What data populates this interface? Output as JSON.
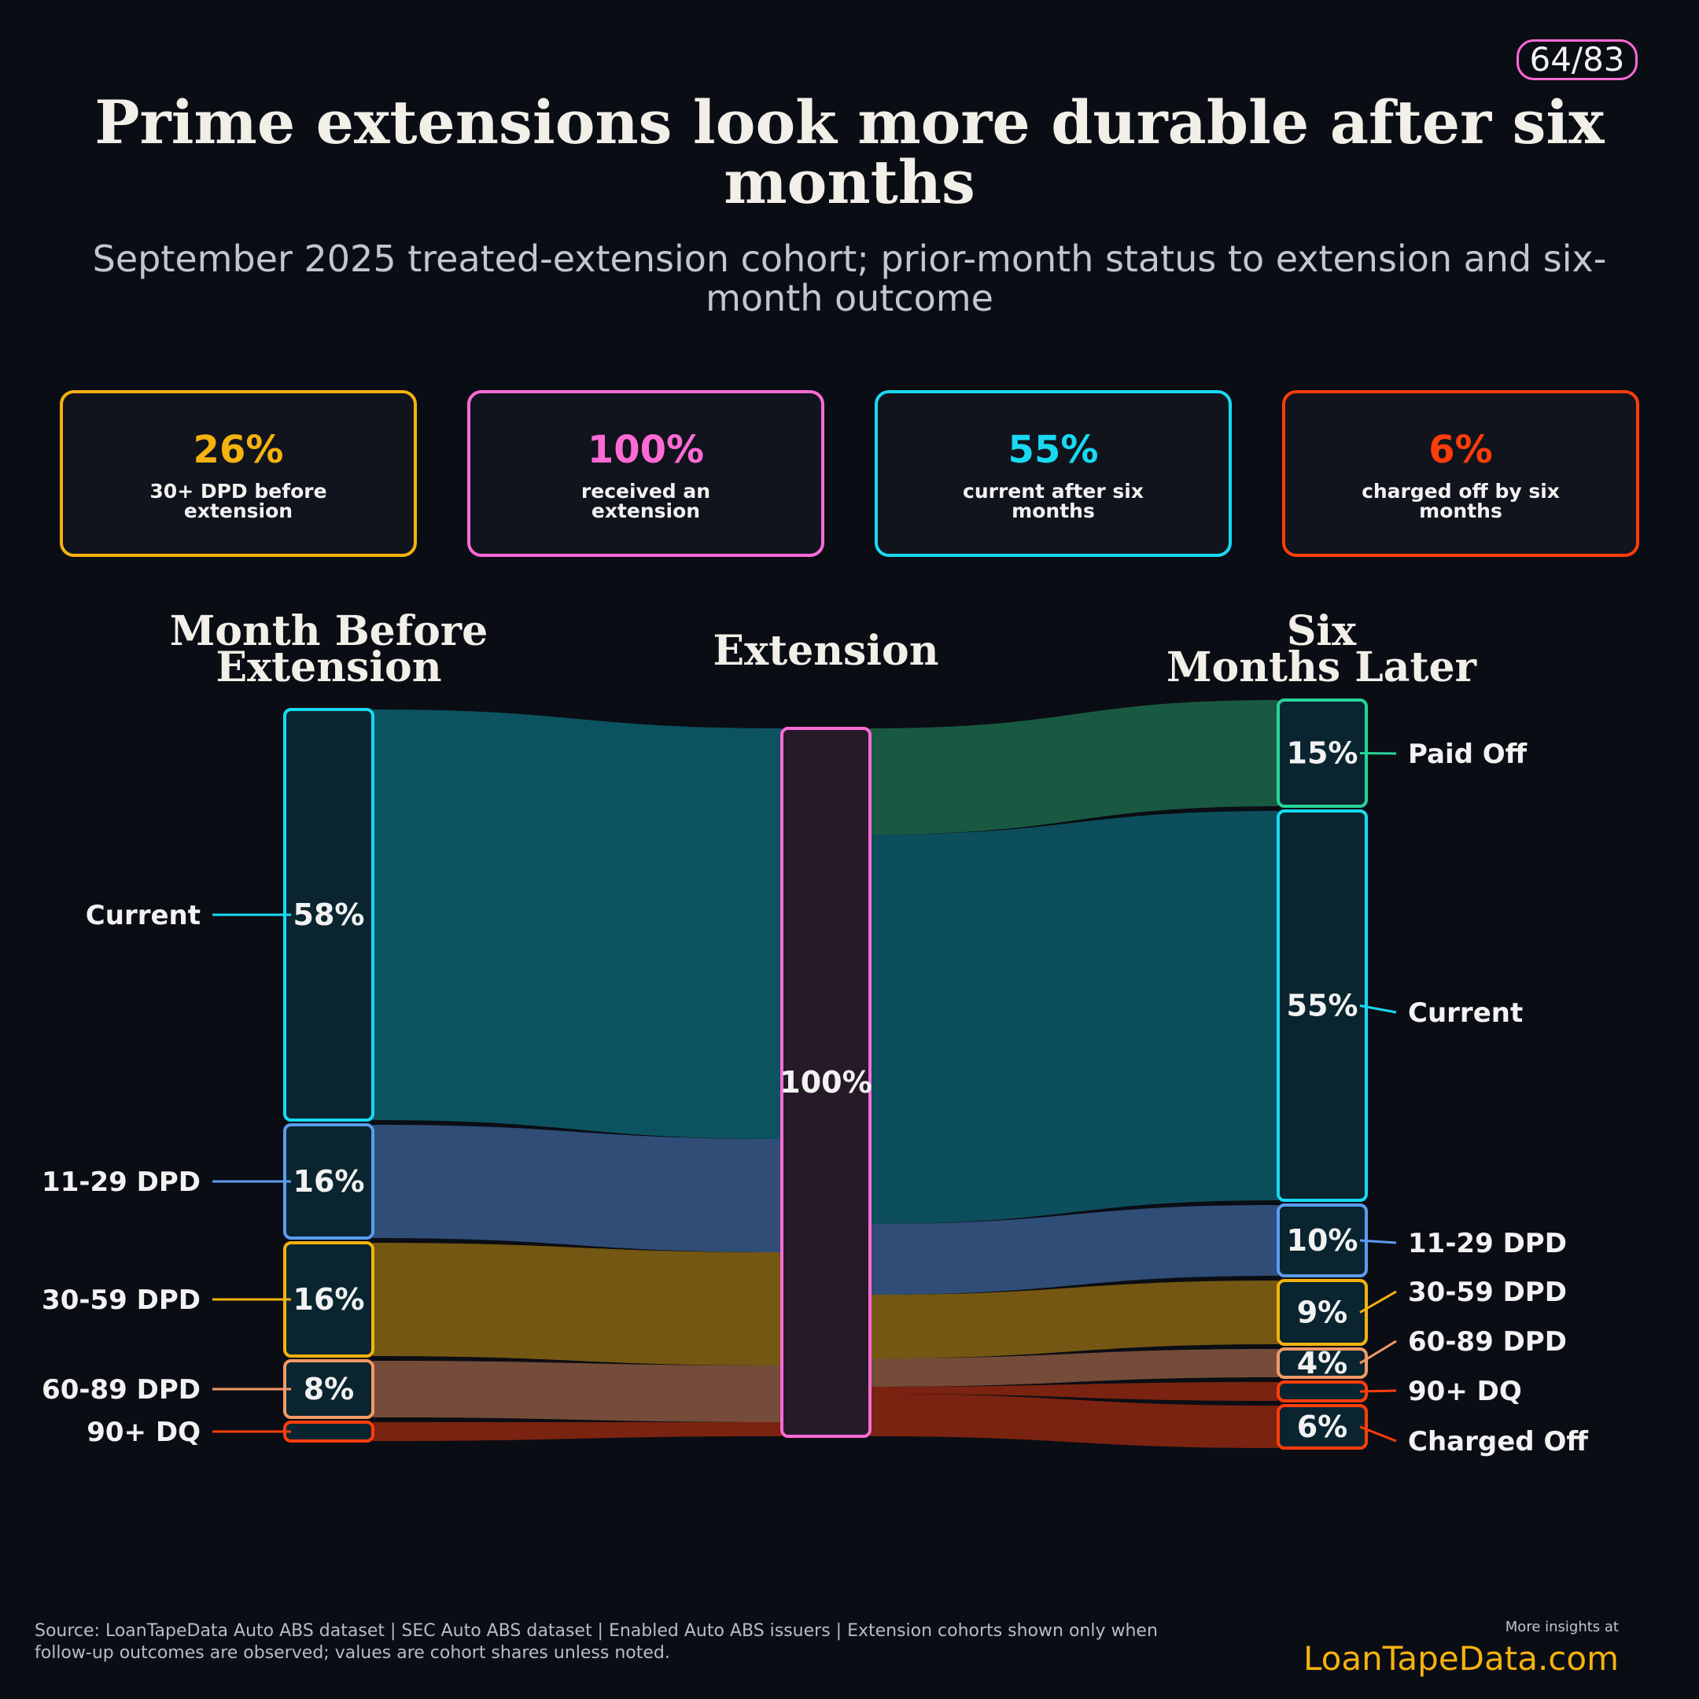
{
  "page_badge": "64/83",
  "title": "Prime extensions look more durable after six months",
  "subtitle": "September 2025 treated-extension cohort; prior-month status to extension and six-month outcome",
  "kpis": [
    {
      "value": "26%",
      "label": "30+ DPD before extension",
      "color": "#f5b20f"
    },
    {
      "value": "100%",
      "label": "received an extension",
      "color": "#ff6ad5"
    },
    {
      "value": "55%",
      "label": "current after six months",
      "color": "#19d9f2"
    },
    {
      "value": "6%",
      "label": "charged off by six months",
      "color": "#ff3d0a"
    }
  ],
  "columns": {
    "left": [
      "Month Before",
      "Extension"
    ],
    "middle": [
      "Extension"
    ],
    "right": [
      "Six",
      "Months Later"
    ]
  },
  "chart_data": {
    "type": "sankey",
    "unit": "% of cohort",
    "stages": [
      "Month Before Extension",
      "Extension",
      "Six Months Later"
    ],
    "left_nodes": [
      {
        "name": "Current",
        "value": 58,
        "label": "58%",
        "color": "#19d9f2"
      },
      {
        "name": "11-29 DPD",
        "value": 16,
        "label": "16%",
        "color": "#5b9cf0"
      },
      {
        "name": "30-59 DPD",
        "value": 16,
        "label": "16%",
        "color": "#f5b20f"
      },
      {
        "name": "60-89 DPD",
        "value": 8,
        "label": "8%",
        "color": "#f39a66"
      },
      {
        "name": "90+ DQ",
        "value": 2,
        "label": "",
        "color": "#ff3d0a"
      }
    ],
    "middle_nodes": [
      {
        "name": "Extension",
        "value": 100,
        "label": "100%",
        "color": "#ff6ad5"
      }
    ],
    "right_nodes": [
      {
        "name": "Paid Off",
        "value": 15,
        "label": "15%",
        "color": "#27d49a"
      },
      {
        "name": "Current",
        "value": 55,
        "label": "55%",
        "color": "#19d9f2"
      },
      {
        "name": "11-29 DPD",
        "value": 10,
        "label": "10%",
        "color": "#5b9cf0"
      },
      {
        "name": "30-59 DPD",
        "value": 9,
        "label": "9%",
        "color": "#f5b20f"
      },
      {
        "name": "60-89 DPD",
        "value": 4,
        "label": "4%",
        "color": "#f39a66"
      },
      {
        "name": "90+ DQ",
        "value": 1,
        "label": "",
        "color": "#ff3d0a"
      },
      {
        "name": "Charged Off",
        "value": 6,
        "label": "6%",
        "color": "#ff3d0a"
      }
    ]
  },
  "source": "Source: LoanTapeData Auto ABS dataset | SEC Auto ABS dataset | Enabled Auto ABS issuers | Extension cohorts shown only when follow-up outcomes are observed; values are cohort shares unless noted.",
  "more_insights": "More insights at",
  "brand": "LoanTapeData.com"
}
